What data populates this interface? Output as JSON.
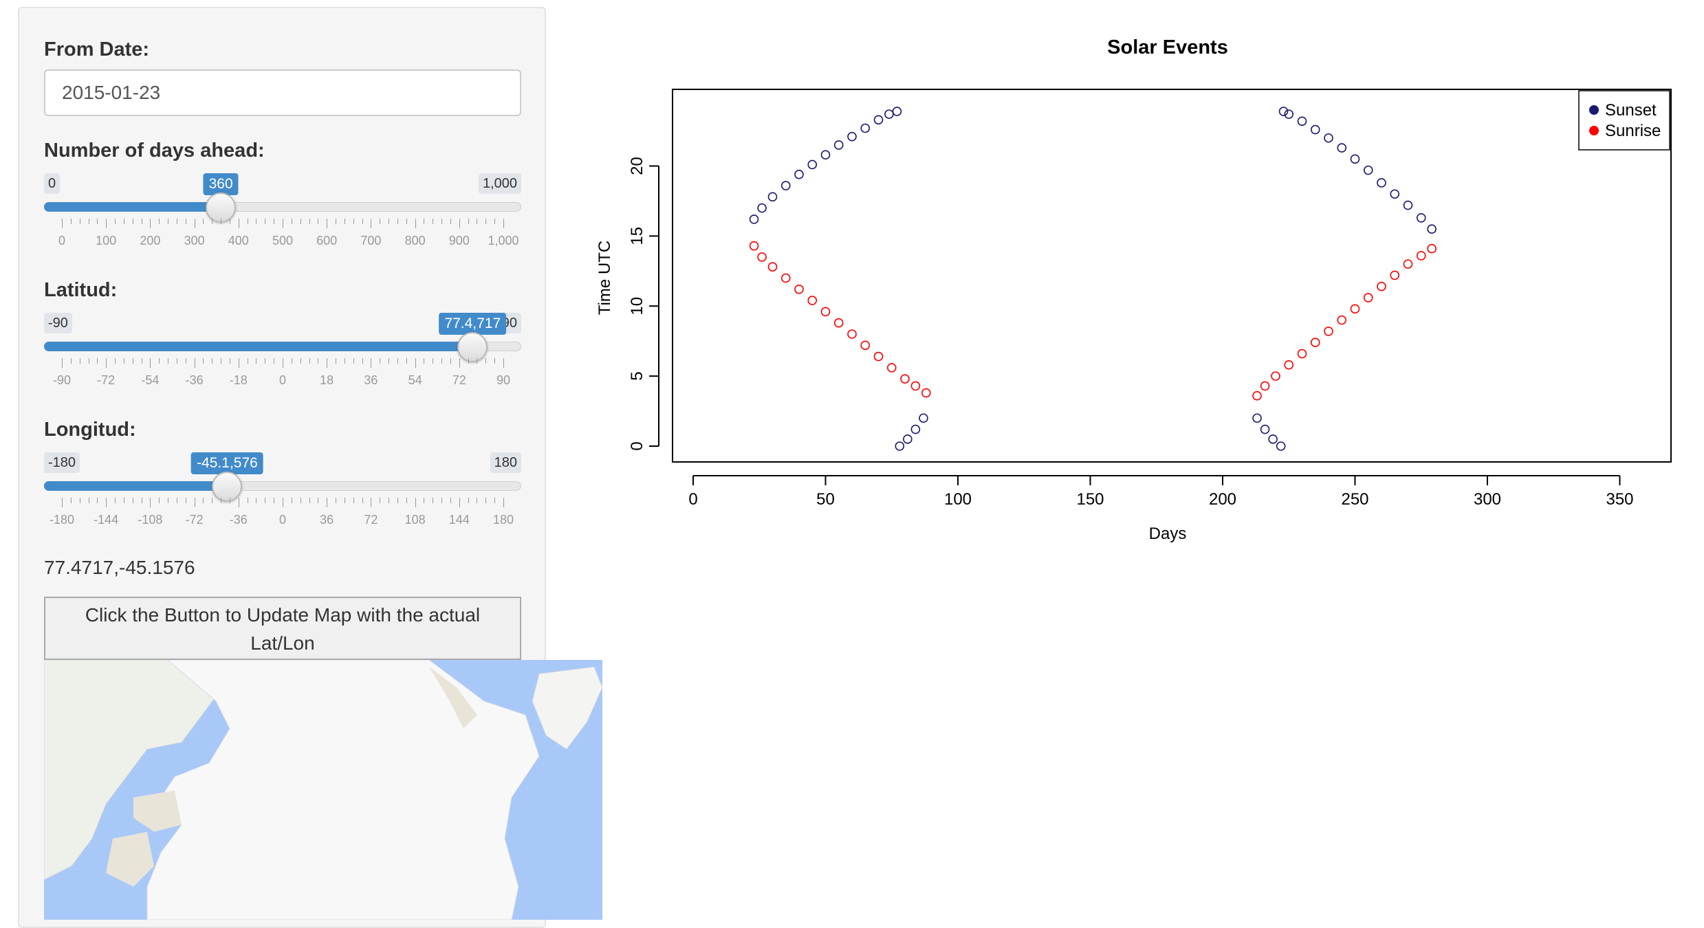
{
  "sidebar": {
    "from_date": {
      "label": "From Date:",
      "value": "2015-01-23"
    },
    "days_ahead": {
      "label": "Number of days ahead:",
      "min_label": "0",
      "max_label": "1,000",
      "value_label": "360",
      "value": 360,
      "min": 0,
      "max": 1000,
      "ticks": [
        "0",
        "100",
        "200",
        "300",
        "400",
        "500",
        "600",
        "700",
        "800",
        "900",
        "1,000"
      ]
    },
    "latitude": {
      "label": "Latitud:",
      "min_label": "-90",
      "max_label": "90",
      "value_label": "77.4,717",
      "value": 77.4717,
      "min": -90,
      "max": 90,
      "ticks": [
        "-90",
        "-72",
        "-54",
        "-36",
        "-18",
        "0",
        "18",
        "36",
        "54",
        "72",
        "90"
      ]
    },
    "longitude": {
      "label": "Longitud:",
      "min_label": "-180",
      "max_label": "180",
      "value_label": "-45.1,576",
      "value": -45.1576,
      "min": -180,
      "max": 180,
      "ticks": [
        "-180",
        "-144",
        "-108",
        "-72",
        "-36",
        "0",
        "36",
        "72",
        "108",
        "144",
        "180"
      ]
    },
    "coords_text": "77.4717,-45.1576",
    "update_button": "Click the Button to Update Map with the actual Lat/Lon"
  },
  "colors": {
    "accent": "#428bca",
    "sunset": "#1a1a6e",
    "sunrise": "#ff0000",
    "water": "#a8c8f8",
    "ice": "#f7f7f7",
    "land": "#e8e4d8"
  },
  "chart_data": {
    "type": "scatter",
    "title": "Solar Events",
    "xlabel": "Days",
    "ylabel": "Time UTC",
    "xlim": [
      0,
      360
    ],
    "ylim": [
      0,
      24
    ],
    "xticks": [
      "0",
      "50",
      "100",
      "150",
      "200",
      "250",
      "300",
      "350"
    ],
    "yticks": [
      "0",
      "5",
      "10",
      "15",
      "20"
    ],
    "legend_position": "top-right",
    "series": [
      {
        "name": "Sunset",
        "color": "#1a1a6e",
        "x": [
          23,
          26,
          30,
          35,
          40,
          45,
          50,
          55,
          60,
          65,
          70,
          74,
          77,
          78,
          81,
          84,
          87,
          213,
          216,
          219,
          222,
          223,
          225,
          230,
          235,
          240,
          245,
          250,
          255,
          260,
          265,
          270,
          275,
          279
        ],
        "y": [
          16.2,
          17.0,
          17.8,
          18.6,
          19.4,
          20.1,
          20.8,
          21.5,
          22.1,
          22.7,
          23.3,
          23.7,
          23.9,
          0.0,
          0.5,
          1.2,
          2.0,
          2.0,
          1.2,
          0.5,
          0.0,
          23.9,
          23.7,
          23.2,
          22.6,
          22.0,
          21.3,
          20.5,
          19.7,
          18.8,
          18.0,
          17.2,
          16.3,
          15.5
        ]
      },
      {
        "name": "Sunrise",
        "color": "#ff0000",
        "x": [
          23,
          26,
          30,
          35,
          40,
          45,
          50,
          55,
          60,
          65,
          70,
          75,
          80,
          84,
          88,
          213,
          216,
          220,
          225,
          230,
          235,
          240,
          245,
          250,
          255,
          260,
          265,
          270,
          275,
          279
        ],
        "y": [
          14.3,
          13.5,
          12.8,
          12.0,
          11.2,
          10.4,
          9.6,
          8.8,
          8.0,
          7.2,
          6.4,
          5.6,
          4.8,
          4.3,
          3.8,
          3.6,
          4.3,
          5.0,
          5.8,
          6.6,
          7.4,
          8.2,
          9.0,
          9.8,
          10.6,
          11.4,
          12.2,
          13.0,
          13.6,
          14.1
        ]
      }
    ]
  }
}
